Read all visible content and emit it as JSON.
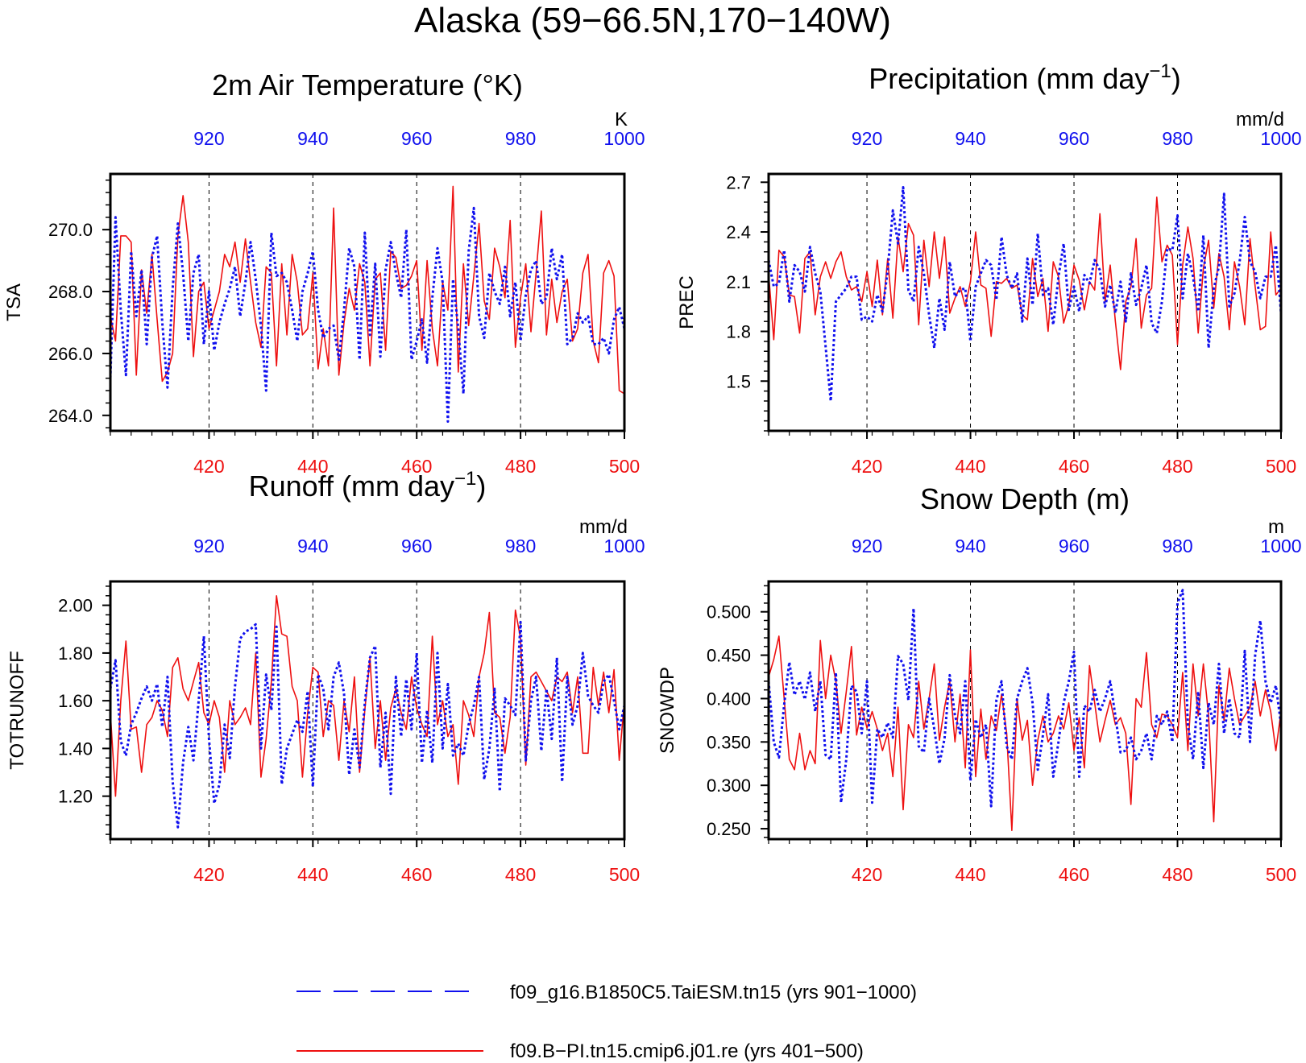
{
  "figure": {
    "title": "Alaska (59−66.5N,170−140W)",
    "colors": {
      "series_a": "#1010ee",
      "series_b": "#ee1010",
      "axis": "#000000"
    }
  },
  "legend": {
    "items": [
      {
        "label": "f09_g16.B1850C5.TaiESM.tn15 (yrs 901−1000)",
        "color": "#1010ee",
        "style": "dashed"
      },
      {
        "label": "f09.B−PI.tn15.cmip6.j01.re (yrs 401−500)",
        "color": "#ee1010",
        "style": "solid"
      }
    ]
  },
  "chart_data": [
    {
      "type": "line",
      "title": "2m Air Temperature (°K)",
      "ylabel": "TSA",
      "unit_label": "K",
      "ylim": [
        263.5,
        271.8
      ],
      "yticks": [
        "264.0",
        "266.0",
        "268.0",
        "270.0"
      ],
      "bottom_xlim": [
        401,
        500
      ],
      "bottom_xticks": [
        "420",
        "440",
        "460",
        "480",
        "500"
      ],
      "top_xlim": [
        901,
        1000
      ],
      "top_xticks": [
        "920",
        "940",
        "960",
        "980",
        "1000"
      ],
      "grid_x_dashed": [
        420,
        440,
        460,
        480
      ],
      "series": [
        {
          "name": "f09.B−PI.tn15.cmip6.j01.re (yrs 401−500)",
          "x_axis": "bottom",
          "style": "solid",
          "values": [
            267.2,
            266.4,
            269.8,
            269.8,
            269.6,
            265.3,
            268.7,
            267.3,
            269.2,
            267.1,
            265.1,
            265.4,
            266.0,
            269.8,
            271.1,
            269.6,
            265.9,
            268.0,
            268.3,
            266.8,
            267.4,
            268.0,
            269.2,
            268.8,
            269.6,
            268.3,
            269.7,
            268.3,
            267.0,
            266.2,
            268.8,
            268.6,
            265.6,
            268.9,
            266.6,
            269.2,
            268.3,
            266.6,
            266.8,
            268.6,
            265.5,
            266.8,
            265.6,
            270.7,
            265.3,
            267.0,
            268.1,
            267.4,
            268.9,
            268.3,
            265.6,
            268.4,
            268.6,
            266.1,
            269.3,
            269.1,
            268.1,
            268.2,
            268.5,
            269.0,
            266.1,
            269.0,
            266.8,
            265.6,
            268.3,
            267.4,
            271.4,
            265.4,
            268.9,
            266.9,
            268.5,
            270.2,
            267.7,
            267.1,
            269.4,
            268.8,
            267.8,
            270.3,
            266.2,
            267.8,
            268.9,
            266.7,
            268.6,
            270.6,
            266.6,
            268.4,
            267.0,
            268.0,
            268.4,
            266.4,
            266.8,
            268.6,
            269.2,
            266.4,
            265.7,
            268.6,
            269.0,
            268.5,
            264.8,
            264.7
          ]
        },
        {
          "name": "f09_g16.B1850C5.TaiESM.tn15 (yrs 901−1000)",
          "x_axis": "top",
          "style": "dashed",
          "values": [
            265.2,
            270.4,
            267.4,
            265.3,
            269.3,
            267.2,
            268.7,
            266.3,
            269.1,
            269.8,
            267.0,
            264.9,
            268.1,
            270.2,
            268.6,
            266.4,
            268.6,
            269.2,
            266.3,
            268.0,
            266.1,
            267.0,
            267.6,
            268.1,
            268.8,
            267.2,
            268.3,
            269.6,
            268.4,
            266.9,
            264.8,
            269.9,
            268.5,
            268.6,
            268.3,
            267.4,
            266.4,
            268.0,
            268.6,
            269.3,
            267.4,
            266.5,
            266.8,
            266.9,
            265.8,
            267.4,
            269.4,
            268.8,
            265.8,
            269.9,
            266.6,
            268.9,
            265.9,
            268.7,
            269.6,
            268.6,
            267.8,
            270.0,
            265.8,
            266.4,
            267.1,
            265.7,
            267.8,
            269.4,
            268.3,
            263.8,
            268.4,
            266.8,
            264.7,
            269.3,
            270.7,
            267.2,
            266.5,
            268.6,
            268.0,
            267.6,
            268.8,
            267.2,
            268.3,
            266.4,
            267.9,
            268.7,
            269.0,
            267.6,
            267.8,
            269.4,
            268.4,
            269.2,
            266.3,
            266.5,
            267.3,
            267.0,
            267.2,
            266.3,
            266.3,
            266.5,
            266.0,
            267.1,
            267.5,
            266.8
          ]
        }
      ]
    },
    {
      "type": "line",
      "title": "Precipitation (mm day",
      "title_sup": "−1",
      "title_end": ")",
      "ylabel": "PREC",
      "unit_label": "mm/d",
      "ylim": [
        1.2,
        2.75
      ],
      "yticks": [
        "1.5",
        "1.8",
        "2.1",
        "2.4",
        "2.7"
      ],
      "bottom_xlim": [
        401,
        500
      ],
      "bottom_xticks": [
        "420",
        "440",
        "460",
        "480",
        "500"
      ],
      "top_xlim": [
        901,
        1000
      ],
      "top_xticks": [
        "920",
        "940",
        "960",
        "980",
        "1000"
      ],
      "grid_x_dashed": [
        420,
        440,
        460,
        480
      ],
      "series": [
        {
          "name": "f09.B−PI.tn15.cmip6.j01.re (yrs 401−500)",
          "x_axis": "bottom",
          "style": "solid",
          "values": [
            2.15,
            1.75,
            2.29,
            2.25,
            2.02,
            2.01,
            1.79,
            2.24,
            2.28,
            1.9,
            2.13,
            2.22,
            2.12,
            2.22,
            2.28,
            2.13,
            2.05,
            2.07,
            1.98,
            2.16,
            1.95,
            2.23,
            1.9,
            2.24,
            1.88,
            2.37,
            2.16,
            2.45,
            2.38,
            1.84,
            2.35,
            2.07,
            2.4,
            2.12,
            2.37,
            1.91,
            2.0,
            2.07,
            1.95,
            2.1,
            2.4,
            2.08,
            2.06,
            1.77,
            2.1,
            2.09,
            2.12,
            2.06,
            2.08,
            1.9,
            1.87,
            2.24,
            2.01,
            2.12,
            1.8,
            2.22,
            2.13,
            1.85,
            1.96,
            2.2,
            2.11,
            1.93,
            2.1,
            2.05,
            2.51,
            1.98,
            2.2,
            1.86,
            1.57,
            1.98,
            2.07,
            2.36,
            1.82,
            2.02,
            2.06,
            2.61,
            2.22,
            2.32,
            2.26,
            1.72,
            2.2,
            2.43,
            2.24,
            1.79,
            2.18,
            2.35,
            1.94,
            2.27,
            2.13,
            1.81,
            2.22,
            2.07,
            1.84,
            2.36,
            2.07,
            1.81,
            1.83,
            2.4,
            2.02,
            2.06
          ]
        },
        {
          "name": "f09_g16.B1850C5.TaiESM.tn15 (yrs 901−1000)",
          "x_axis": "top",
          "style": "dashed",
          "values": [
            2.23,
            2.07,
            2.09,
            2.29,
            1.98,
            2.2,
            2.16,
            2.04,
            2.31,
            2.15,
            2.04,
            1.71,
            1.38,
            1.98,
            2.02,
            2.06,
            2.13,
            2.13,
            1.87,
            1.89,
            1.86,
            2.02,
            1.92,
            2.17,
            2.53,
            2.33,
            2.67,
            2.05,
            1.98,
            2.31,
            2.15,
            1.9,
            1.7,
            2.0,
            1.81,
            2.22,
            2.01,
            2.05,
            2.06,
            1.74,
            2.07,
            2.15,
            2.23,
            2.2,
            1.99,
            2.37,
            2.14,
            2.06,
            2.15,
            1.86,
            2.24,
            1.96,
            2.39,
            2.02,
            2.06,
            1.84,
            2.13,
            2.33,
            1.93,
            2.07,
            1.92,
            2.14,
            2.09,
            2.23,
            2.17,
            1.95,
            2.08,
            1.91,
            2.1,
            1.86,
            2.15,
            1.96,
            2.06,
            2.2,
            1.85,
            1.79,
            1.98,
            2.3,
            2.29,
            2.5,
            2.0,
            2.27,
            2.13,
            1.92,
            2.38,
            1.7,
            2.06,
            2.19,
            2.63,
            1.95,
            2.03,
            2.22,
            2.49,
            2.22,
            2.16,
            2.0,
            2.13,
            2.13,
            2.32,
            1.91
          ]
        }
      ]
    },
    {
      "type": "line",
      "title": "Runoff (mm day",
      "title_sup": "−1",
      "title_end": ")",
      "ylabel": "TOTRUNOFF",
      "unit_label": "mm/d",
      "ylim": [
        1.02,
        2.1
      ],
      "yticks": [
        "1.20",
        "1.40",
        "1.60",
        "1.80",
        "2.00"
      ],
      "bottom_xlim": [
        401,
        500
      ],
      "bottom_xticks": [
        "420",
        "440",
        "460",
        "480",
        "500"
      ],
      "top_xlim": [
        901,
        1000
      ],
      "top_xticks": [
        "920",
        "940",
        "960",
        "980",
        "1000"
      ],
      "grid_x_dashed": [
        420,
        440,
        460,
        480
      ],
      "series": [
        {
          "name": "f09.B−PI.tn15.cmip6.j01.re (yrs 401−500)",
          "x_axis": "bottom",
          "style": "solid",
          "values": [
            1.55,
            1.2,
            1.6,
            1.85,
            1.48,
            1.49,
            1.3,
            1.5,
            1.53,
            1.6,
            1.56,
            1.45,
            1.74,
            1.78,
            1.65,
            1.6,
            1.68,
            1.76,
            1.55,
            1.5,
            1.6,
            1.53,
            1.3,
            1.6,
            1.5,
            1.53,
            1.57,
            1.5,
            1.8,
            1.28,
            1.44,
            1.68,
            2.04,
            1.88,
            1.87,
            1.66,
            1.6,
            1.28,
            1.55,
            1.74,
            1.72,
            1.45,
            1.6,
            1.58,
            1.35,
            1.6,
            1.47,
            1.7,
            1.3,
            1.56,
            1.78,
            1.4,
            1.6,
            1.35,
            1.57,
            1.65,
            1.55,
            1.48,
            1.7,
            1.57,
            1.5,
            1.45,
            1.87,
            1.5,
            1.6,
            1.45,
            1.5,
            1.25,
            1.6,
            1.54,
            1.45,
            1.7,
            1.8,
            1.97,
            1.55,
            1.53,
            1.38,
            1.53,
            1.98,
            1.86,
            1.33,
            1.7,
            1.72,
            1.68,
            1.64,
            1.6,
            1.7,
            1.68,
            1.72,
            1.55,
            1.7,
            1.38,
            1.38,
            1.74,
            1.58,
            1.72,
            1.55,
            1.73,
            1.35,
            1.6
          ]
        },
        {
          "name": "f09_g16.B1850C5.TaiESM.tn15 (yrs 901−1000)",
          "x_axis": "top",
          "style": "dashed",
          "values": [
            1.65,
            1.77,
            1.43,
            1.37,
            1.5,
            1.55,
            1.61,
            1.66,
            1.6,
            1.67,
            1.49,
            1.7,
            1.26,
            1.07,
            1.34,
            1.49,
            1.35,
            1.6,
            1.87,
            1.44,
            1.17,
            1.25,
            1.5,
            1.36,
            1.66,
            1.86,
            1.89,
            1.9,
            1.92,
            1.4,
            1.71,
            1.56,
            1.91,
            1.25,
            1.4,
            1.46,
            1.52,
            1.47,
            1.64,
            1.24,
            1.71,
            1.65,
            1.48,
            1.7,
            1.76,
            1.63,
            1.29,
            1.48,
            1.32,
            1.59,
            1.78,
            1.83,
            1.32,
            1.55,
            1.21,
            1.7,
            1.45,
            1.69,
            1.48,
            1.8,
            1.34,
            1.56,
            1.34,
            1.8,
            1.4,
            1.67,
            1.37,
            1.42,
            1.37,
            1.5,
            1.58,
            1.7,
            1.27,
            1.4,
            1.65,
            1.22,
            1.61,
            1.58,
            1.54,
            1.93,
            1.35,
            1.6,
            1.7,
            1.39,
            1.65,
            1.44,
            1.78,
            1.26,
            1.7,
            1.5,
            1.58,
            1.8,
            1.62,
            1.58,
            1.55,
            1.68,
            1.71,
            1.6,
            1.48,
            1.58
          ]
        }
      ]
    },
    {
      "type": "line",
      "title": "Snow Depth (m)",
      "ylabel": "SNOWDP",
      "unit_label": "m",
      "ylim": [
        0.238,
        0.535
      ],
      "yticks": [
        "0.250",
        "0.300",
        "0.350",
        "0.400",
        "0.450",
        "0.500"
      ],
      "bottom_xlim": [
        401,
        500
      ],
      "bottom_xticks": [
        "420",
        "440",
        "460",
        "480",
        "500"
      ],
      "top_xlim": [
        901,
        1000
      ],
      "top_xticks": [
        "920",
        "940",
        "960",
        "980",
        "1000"
      ],
      "grid_x_dashed": [
        420,
        440,
        460,
        480
      ],
      "series": [
        {
          "name": "f09.B−PI.tn15.cmip6.j01.re (yrs 401−500)",
          "x_axis": "bottom",
          "style": "solid",
          "values": [
            0.425,
            0.445,
            0.472,
            0.4,
            0.33,
            0.318,
            0.36,
            0.318,
            0.34,
            0.325,
            0.467,
            0.4,
            0.45,
            0.42,
            0.36,
            0.408,
            0.46,
            0.358,
            0.39,
            0.366,
            0.385,
            0.365,
            0.34,
            0.36,
            0.31,
            0.39,
            0.272,
            0.37,
            0.355,
            0.42,
            0.365,
            0.4,
            0.44,
            0.352,
            0.39,
            0.42,
            0.35,
            0.405,
            0.32,
            0.456,
            0.31,
            0.388,
            0.33,
            0.38,
            0.363,
            0.405,
            0.36,
            0.248,
            0.4,
            0.352,
            0.375,
            0.3,
            0.352,
            0.38,
            0.35,
            0.36,
            0.38,
            0.365,
            0.395,
            0.34,
            0.378,
            0.32,
            0.438,
            0.395,
            0.35,
            0.375,
            0.398,
            0.37,
            0.378,
            0.36,
            0.278,
            0.4,
            0.39,
            0.453,
            0.37,
            0.355,
            0.382,
            0.38,
            0.37,
            0.355,
            0.43,
            0.34,
            0.44,
            0.38,
            0.44,
            0.38,
            0.258,
            0.415,
            0.375,
            0.435,
            0.4,
            0.37,
            0.38,
            0.39,
            0.42,
            0.38,
            0.41,
            0.385,
            0.34,
            0.385
          ]
        },
        {
          "name": "f09_g16.B1850C5.TaiESM.tn15 (yrs 901−1000)",
          "x_axis": "top",
          "style": "dashed",
          "values": [
            0.42,
            0.35,
            0.332,
            0.393,
            0.442,
            0.404,
            0.42,
            0.399,
            0.43,
            0.385,
            0.42,
            0.335,
            0.33,
            0.43,
            0.28,
            0.33,
            0.415,
            0.408,
            0.36,
            0.42,
            0.28,
            0.365,
            0.355,
            0.372,
            0.355,
            0.449,
            0.44,
            0.398,
            0.504,
            0.345,
            0.338,
            0.4,
            0.365,
            0.325,
            0.354,
            0.427,
            0.38,
            0.36,
            0.42,
            0.305,
            0.376,
            0.355,
            0.37,
            0.276,
            0.398,
            0.42,
            0.345,
            0.33,
            0.4,
            0.42,
            0.435,
            0.395,
            0.318,
            0.358,
            0.405,
            0.31,
            0.35,
            0.395,
            0.42,
            0.454,
            0.31,
            0.392,
            0.385,
            0.41,
            0.385,
            0.4,
            0.42,
            0.38,
            0.338,
            0.34,
            0.355,
            0.33,
            0.34,
            0.36,
            0.33,
            0.38,
            0.37,
            0.385,
            0.35,
            0.51,
            0.525,
            0.37,
            0.33,
            0.408,
            0.32,
            0.395,
            0.37,
            0.44,
            0.36,
            0.4,
            0.36,
            0.355,
            0.455,
            0.35,
            0.45,
            0.49,
            0.42,
            0.395,
            0.415,
            0.37
          ]
        }
      ]
    }
  ]
}
